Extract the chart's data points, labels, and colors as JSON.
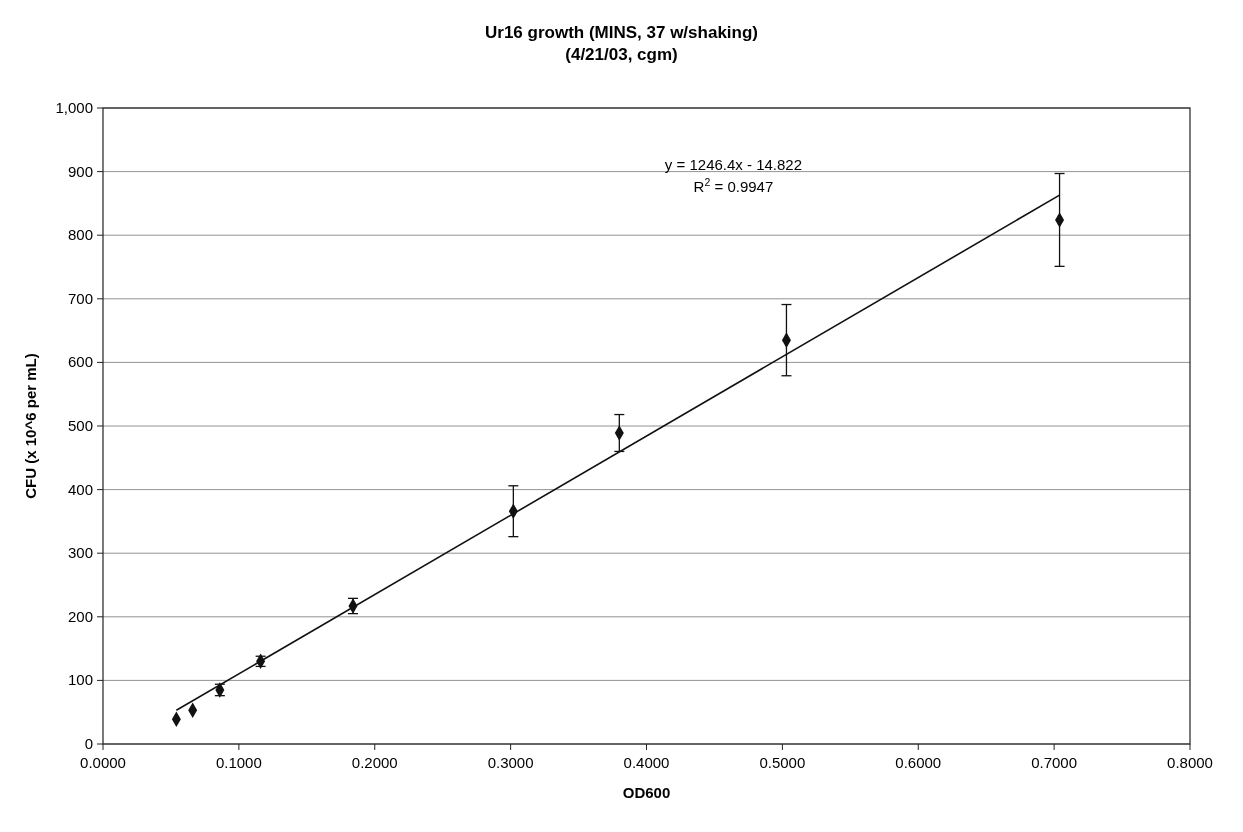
{
  "chart_data": {
    "type": "scatter",
    "title": "Ur16 growth (MINS, 37 w/shaking)",
    "subtitle": "(4/21/03, cgm)",
    "xlabel": "OD600",
    "ylabel": "CFU (x 10^6 per mL)",
    "x": [
      0.054,
      0.066,
      0.086,
      0.116,
      0.184,
      0.302,
      0.38,
      0.503,
      0.704
    ],
    "series": [
      {
        "color": "#111111",
        "values": [
          39,
          53,
          85,
          130,
          217,
          366,
          489,
          635,
          824
        ],
        "errors": [
          null,
          null,
          9,
          8,
          12,
          40,
          29,
          56,
          73
        ],
        "marker": "diamond"
      },
      {
        "type": "line",
        "color": "#111111",
        "x": [
          0.054,
          0.704
        ],
        "values": [
          53,
          863
        ],
        "marker": "none",
        "line_style": "solid"
      }
    ],
    "annotations": [
      "y = 1246.4x - 14.822",
      "R$^{2}$ = 0.9947"
    ],
    "xlim": [
      0,
      0.8
    ],
    "xticks": [
      {
        "value": 0,
        "label": "0.0000"
      },
      {
        "value": 0.1,
        "label": "0.1000"
      },
      {
        "value": 0.2,
        "label": "0.2000"
      },
      {
        "value": 0.3,
        "label": "0.3000"
      },
      {
        "value": 0.4,
        "label": "0.4000"
      },
      {
        "value": 0.5,
        "label": "0.5000"
      },
      {
        "value": 0.6,
        "label": "0.6000"
      },
      {
        "value": 0.7,
        "label": "0.7000"
      },
      {
        "value": 0.8,
        "label": "0.8000"
      }
    ],
    "ylim": [
      0,
      1000
    ],
    "yticks": [
      0,
      100,
      200,
      300,
      400,
      500,
      600,
      700,
      800,
      900,
      {
        "value": 1000,
        "label": "1,000"
      }
    ],
    "grid": "y"
  }
}
